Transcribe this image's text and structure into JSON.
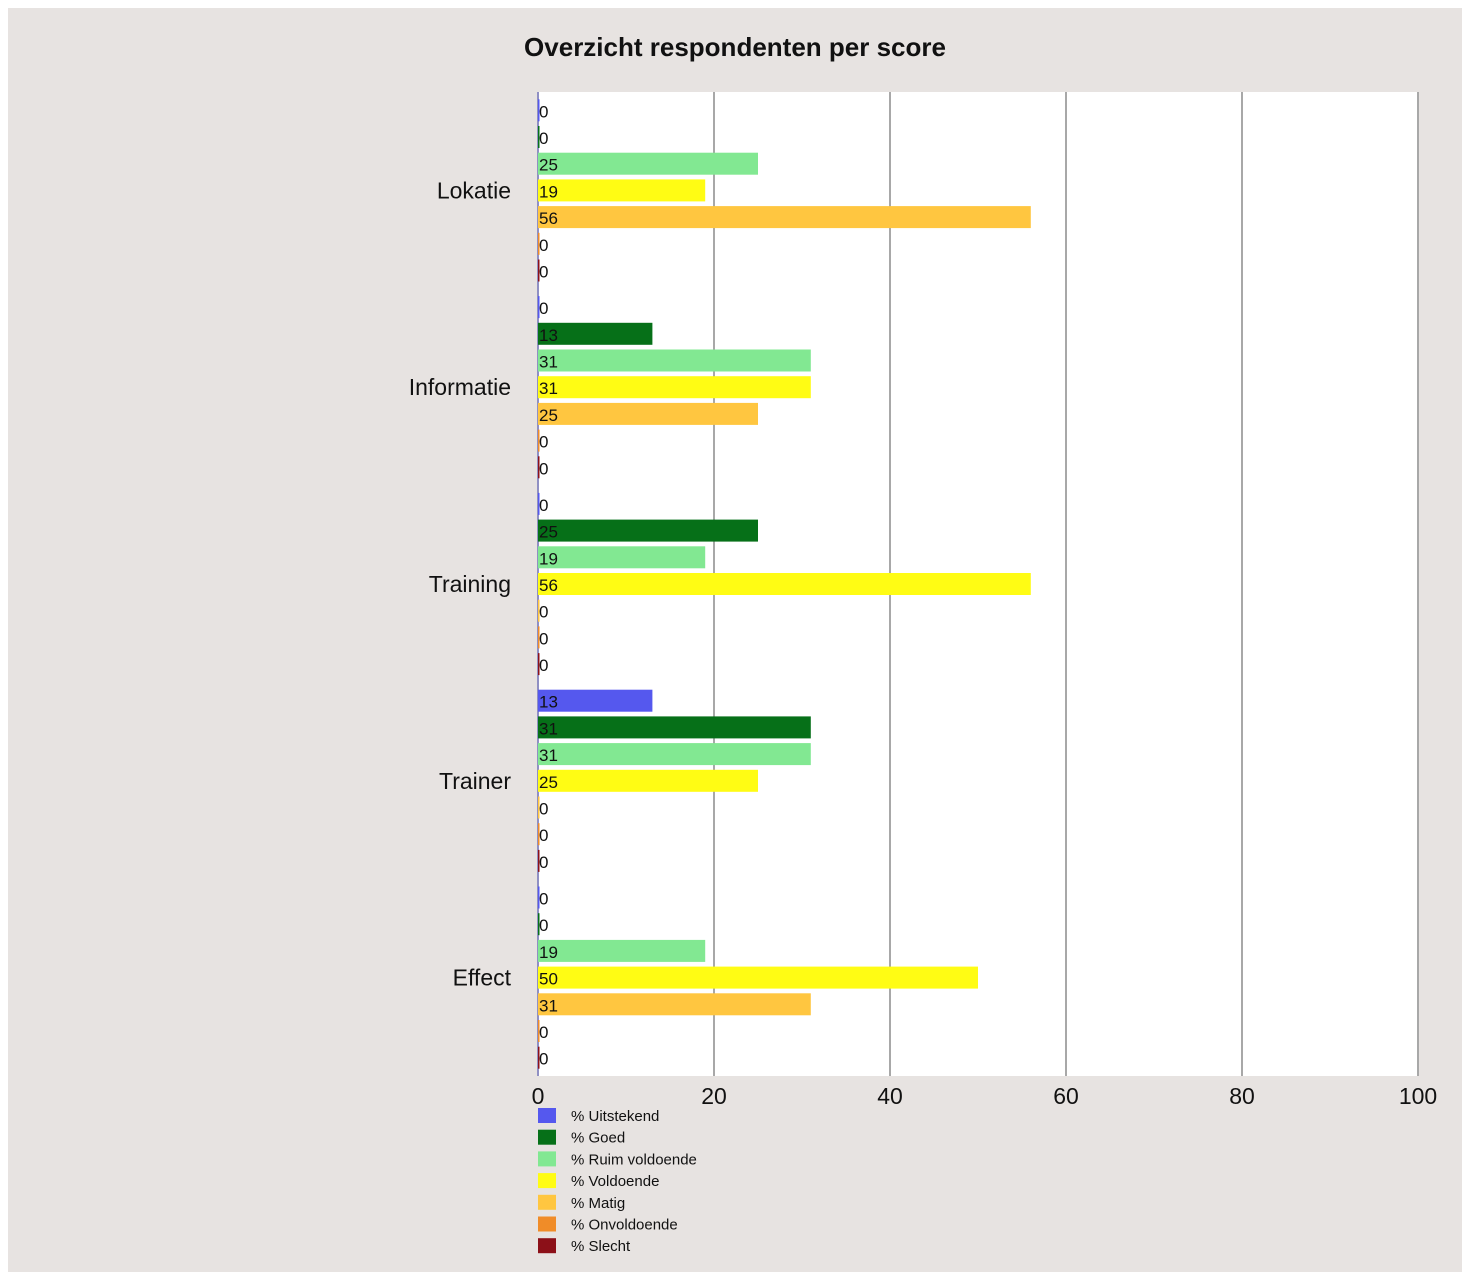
{
  "chart_data": {
    "type": "bar",
    "orientation": "horizontal",
    "title": "Overzicht respondenten per score",
    "xlabel": "",
    "ylabel": "",
    "xlim": [
      0,
      100
    ],
    "xticks": [
      0,
      20,
      40,
      60,
      80,
      100
    ],
    "grid": true,
    "legend_position": "bottom",
    "categories": [
      "Lokatie",
      "Informatie",
      "Training",
      "Trainer",
      "Effect"
    ],
    "series": [
      {
        "name": "% Uitstekend",
        "color": "#5558ee",
        "values": [
          0,
          0,
          0,
          13,
          0
        ]
      },
      {
        "name": "% Goed",
        "color": "#067018",
        "values": [
          0,
          13,
          25,
          31,
          0
        ]
      },
      {
        "name": "% Ruim voldoende",
        "color": "#82e892",
        "values": [
          25,
          31,
          19,
          31,
          19
        ]
      },
      {
        "name": "% Voldoende",
        "color": "#fffc14",
        "values": [
          19,
          31,
          56,
          25,
          50
        ]
      },
      {
        "name": "% Matig",
        "color": "#ffc640",
        "values": [
          56,
          25,
          0,
          0,
          31
        ]
      },
      {
        "name": "% Onvoldoende",
        "color": "#f08c28",
        "values": [
          0,
          0,
          0,
          0,
          0
        ]
      },
      {
        "name": "% Slecht",
        "color": "#8c1018",
        "values": [
          0,
          0,
          0,
          0,
          0
        ]
      }
    ]
  }
}
